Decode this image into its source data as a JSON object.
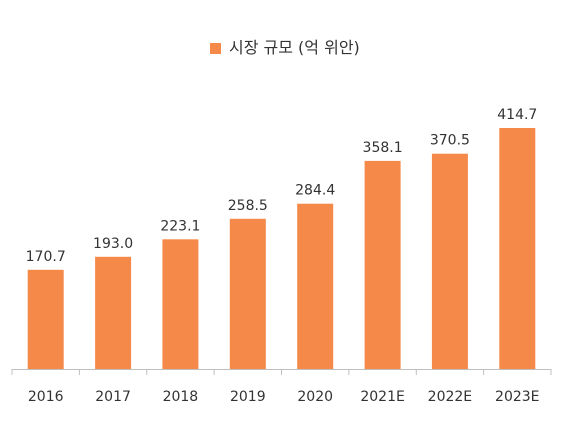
{
  "chart_data": {
    "type": "bar",
    "categories": [
      "2016",
      "2017",
      "2018",
      "2019",
      "2020",
      "2021E",
      "2022E",
      "2023E"
    ],
    "series": [
      {
        "name": "시장 규모 (억 위안)",
        "values": [
          170.7,
          193.0,
          223.1,
          258.5,
          284.4,
          358.1,
          370.5,
          414.7
        ]
      }
    ],
    "data_labels": [
      "170.7",
      "193.0",
      "223.1",
      "258.5",
      "284.4",
      "358.1",
      "370.5",
      "414.7"
    ],
    "legend_position": "top-center",
    "grid": false,
    "ylim": [
      0,
      600
    ],
    "colors": {
      "bar": "#f5894a",
      "axis": "#bfbfbf",
      "text": "#333333"
    }
  }
}
